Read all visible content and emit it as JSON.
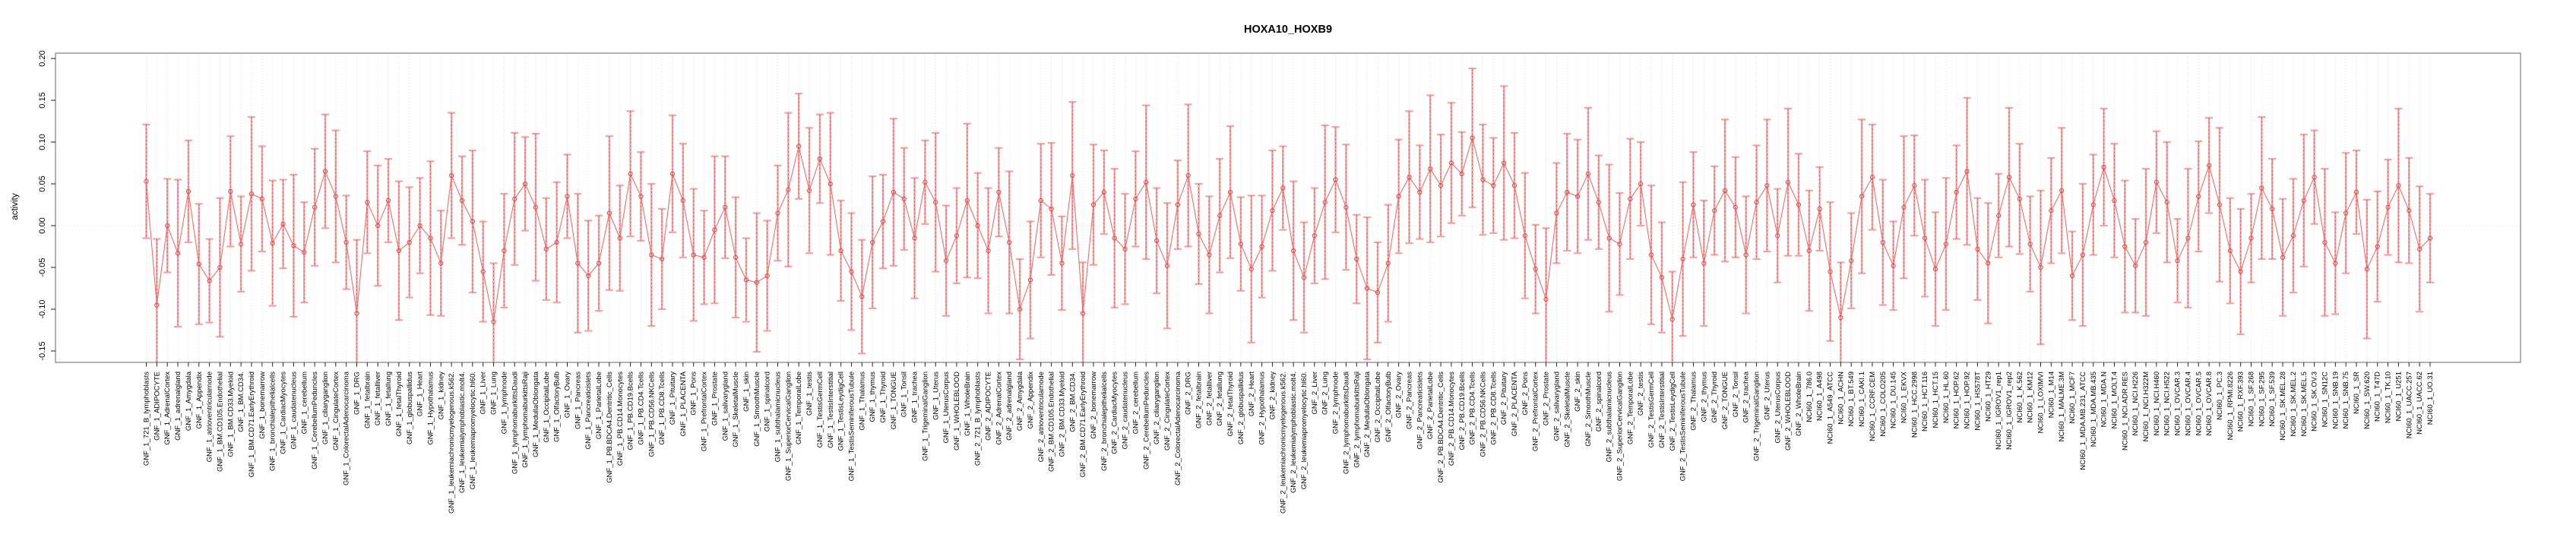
{
  "chart_data": {
    "type": "line",
    "title": "HOXA10_HOXB9",
    "xlabel": "",
    "ylabel": "activity",
    "ylim": [
      -0.164,
      0.206
    ],
    "yticks": [
      0.2,
      0.15,
      0.1,
      0.05,
      0.0,
      -0.05,
      -0.1,
      -0.15
    ],
    "ytick_labels": [
      "0.20",
      "0.15",
      "0.10",
      "0.05",
      "0.00",
      "-0.05",
      "-0.10",
      "-0.15"
    ],
    "grid": "dotted vertical line per category; dotted horizontal line at y=0",
    "legend_position": "none",
    "point_style": "open-circle with symmetric error bars",
    "colors": {
      "error_bar": "#f5a2a2",
      "error_bar_dash": "#e35f5f",
      "line": "#ef6d6d",
      "point_stroke": "#e04b4b",
      "gridline": "#dcdcdc",
      "axis_box": "#666666",
      "tick": "#222222",
      "text": "#000000",
      "background": "#ffffff"
    },
    "categories": [
      "GNF_1_721_B_lymphoblasts",
      "GNF_1_ADIPOCYTE",
      "GNF_1_AdrenalCortex",
      "GNF_1_adrenalgland",
      "GNF_1_Amygdala",
      "GNF_1_Appendix",
      "GNF_1_atrioventricularnode",
      "GNF_1_BM.CD105.Endothelial",
      "GNF_1_BM.CD33.Myeloid",
      "GNF_1_BM.CD34.",
      "GNF_1_BM.CD71.EarlyErythroid",
      "GNF_1_bonemarrow",
      "GNF_1_bronchialepithelialcells",
      "GNF_1_CardiacMyocytes",
      "GNF_1_caudatenucleus",
      "GNF_1_cerebellum",
      "GNF_1_CerebellumPeduncles",
      "GNF_1_ciliaryganglion",
      "GNF_1_CingulateCortex",
      "GNF_1_ColorectalAdenocarcinoma",
      "GNF_1_DRG",
      "GNF_1_fetalbrain",
      "GNF_1_fetalliver",
      "GNF_1_fetallung",
      "GNF_1_fetalThyroid",
      "GNF_1_globuspallidus",
      "GNF_1_Heart",
      "GNF_1_Hypothalamus",
      "GNF_1_kidney",
      "GNF_1_leukemiachronicmyelogenous.k562.",
      "GNF_1_leukemialymphoblastic.molt4.",
      "GNF_1_leukemiapromyelocytic.hl60.",
      "GNF_1_Liver",
      "GNF_1_Lung",
      "GNF_1_lymphnode",
      "GNF_1_lymphomaburkittsDaudi",
      "GNF_1_lymphomaburkittsRaji",
      "GNF_1_MedullaOblongata",
      "GNF_1_OccipitalLobe",
      "GNF_1_OlfactoryBulb",
      "GNF_1_Ovary",
      "GNF_1_Pancreas",
      "GNF_1_Pancreaticislets",
      "GNF_1_ParietalLobe",
      "GNF_1_PB.BDCA4.Dentritic_Cells",
      "GNF_1_PB.CD14.Monocytes",
      "GNF_1_PB.CD19.Bcells",
      "GNF_1_PB.CD4.Tcells",
      "GNF_1_PB.CD56.NKCells",
      "GNF_1_PB.CD8.Tcells",
      "GNF_1_Pituitary",
      "GNF_1_PLACENTA",
      "GNF_1_Pons",
      "GNF_1_PrefrontalCortex",
      "GNF_1_Prostate",
      "GNF_1_salivarygland",
      "GNF_1_SkeletalMuscle",
      "GNF_1_skin",
      "GNF_1_SmoothMuscle",
      "GNF_1_spinalcord",
      "GNF_1_subthalamicnucleus",
      "GNF_1_SuperiorCervicalGanglion",
      "GNF_1_TemporalLobe",
      "GNF_1_testis",
      "GNF_1_TestisGermCell",
      "GNF_1_TestisInterstitial",
      "GNF_1_TestisLeydigCell",
      "GNF_1_TestisSeminiferousTubule",
      "GNF_1_Thalamus",
      "GNF_1_thymus",
      "GNF_1_Thyroid",
      "GNF_1_TONGUE",
      "GNF_1_Tonsil",
      "GNF_1_trachea",
      "GNF_1_TrigeminalGanglion",
      "GNF_1_Uterus",
      "GNF_1_UterusCorpus",
      "GNF_1_WHOLEBLOOD",
      "GNF_1_WholeBrain",
      "GNF_2_721_B_lymphoblasts",
      "GNF_2_ADIPOCYTE",
      "GNF_2_AdrenalCortex",
      "GNF_2_adrenalgland",
      "GNF_2_Amygdala",
      "GNF_2_Appendix",
      "GNF_2_atrioventricularnode",
      "GNF_2_BM.CD105.Endothelial",
      "GNF_2_BM.CD33.Myeloid",
      "GNF_2_BM.CD34.",
      "GNF_2_BM.CD71.EarlyErythroid",
      "GNF_2_bonemarrow",
      "GNF_2_bronchialepithelialcells",
      "GNF_2_CardiacMyocytes",
      "GNF_2_caudatenucleus",
      "GNF_2_cerebellum",
      "GNF_2_CerebellumPeduncles",
      "GNF_2_ciliaryganglion",
      "GNF_2_CingulateCortex",
      "GNF_2_ColorectalAdenocarcinoma",
      "GNF_2_DRG",
      "GNF_2_fetalbrain",
      "GNF_2_fetalliver",
      "GNF_2_fetallung",
      "GNF_2_fetalThyroid",
      "GNF_2_globuspallidus",
      "GNF_2_Heart",
      "GNF_2_Hypothalamus",
      "GNF_2_kidney",
      "GNF_2_leukemiachronicmyelogenous.k562.",
      "GNF_2_leukemialymphoblastic.molt4.",
      "GNF_2_leukemiapromyelocytic.hl60.",
      "GNF_2_Liver",
      "GNF_2_Lung",
      "GNF_2_lymphnode",
      "GNF_2_lymphomaburkittsDaudi",
      "GNF_2_lymphomaburkittsRaji",
      "GNF_2_MedullaOblongata",
      "GNF_2_OccipitalLobe",
      "GNF_2_OlfactoryBulb",
      "GNF_2_Ovary",
      "GNF_2_Pancreas",
      "GNF_2_Pancreaticislets",
      "GNF_2_ParietalLobe",
      "GNF_2_PB.BDCA4.Dentritic_Cells",
      "GNF_2_PB.CD14.Monocytes",
      "GNF_2_PB.CD19.Bcells",
      "GNF_2_PB.CD4.Tcells",
      "GNF_2_PB.CD56.NKCells",
      "GNF_2_PB.CD8.Tcells",
      "GNF_2_Pituitary",
      "GNF_2_PLACENTA",
      "GNF_2_Pons",
      "GNF_2_PrefrontalCortex",
      "GNF_2_Prostate",
      "GNF_2_salivarygland",
      "GNF_2_SkeletalMuscle",
      "GNF_2_skin",
      "GNF_2_SmoothMuscle",
      "GNF_2_spinalcord",
      "GNF_2_subthalamicnucleus",
      "GNF_2_SuperiorCervicalGanglion",
      "GNF_2_TemporalLobe",
      "GNF_2_testis",
      "GNF_2_TestisGermCell",
      "GNF_2_TestisInterstitial",
      "GNF_2_TestisLeydigCell",
      "GNF_2_TestisSeminiferousTubule",
      "GNF_2_Thalamus",
      "GNF_2_thymus",
      "GNF_2_Thyroid",
      "GNF_2_TONGUE",
      "GNF_2_Tonsil",
      "GNF_2_trachea",
      "GNF_2_TrigeminalGanglion",
      "GNF_2_Uterus",
      "GNF_2_UterusCorpus",
      "GNF_2_WHOLEBLOOD",
      "GNF_2_WholeBrain",
      "NCI60_1_786.0",
      "NCI60_1_A498",
      "NCI60_1_A549_ATCC",
      "NCI60_1_ACHN",
      "NCI60_1_BT.549",
      "NCI60_1_CAKI.1",
      "NCI60_1_CCRF.CEM",
      "NCI60_1_COLO205",
      "NCI60_1_DU.145",
      "NCI60_1_EKVX",
      "NCI60_1_HCC.2998",
      "NCI60_1_HCT.116",
      "NCI60_1_HCT.15",
      "NCI60_1_HL.60",
      "NCI60_1_HOP.62",
      "NCI60_1_HOP.92",
      "NCI60_1_HS578T",
      "NCI60_1_HT29",
      "NCI60_1_IGROV1_rep1",
      "NCI60_1_IGROV1_rep2",
      "NCI60_1_K.562",
      "NCI60_1_KM12",
      "NCI60_1_LOXIMVI",
      "NCI60_1_M14",
      "NCI60_1_MALME.3M",
      "NCI60_1_MCF7",
      "NCI60_1_MDA.MB.231_ATCC",
      "NCI60_1_MDA.MB.435",
      "NCI60_1_MDA.N",
      "NCI60_1_MOLT.4",
      "NCI60_1_NCI.ADR.RES",
      "NCI60_1_NCI.H226",
      "NCI60_1_NCI.H322M",
      "NCI60_1_NCI.H460",
      "NCI60_1_NCI.H522",
      "NCI60_1_OVCAR.3",
      "NCI60_1_OVCAR.4",
      "NCI60_1_OVCAR.5",
      "NCI60_1_OVCAR.8",
      "NCI60_1_PC.3",
      "NCI60_1_RPMI.8226",
      "NCI60_1_RXF.393",
      "NCI60_1_SF.268",
      "NCI60_1_SF.295",
      "NCI60_1_SF.539",
      "NCI60_1_SK.MEL.28",
      "NCI60_1_SK.MEL.2",
      "NCI60_1_SK.MEL.5",
      "NCI60_1_SK.OV.3",
      "NCI60_1_SN12C",
      "NCI60_1_SNB.19",
      "NCI60_1_SNB.75",
      "NCI60_1_SR",
      "NCI60_1_SW.620",
      "NCI60_1_T47D",
      "NCI60_1_TK.10",
      "NCI60_1_U251",
      "NCI60_1_UACC.257",
      "NCI60_1_UACC.62",
      "NCI60_1_UO.31"
    ],
    "series": [
      {
        "name": "activity",
        "means": [
          0.053,
          -0.095,
          0.0,
          -0.033,
          0.041,
          -0.046,
          -0.066,
          -0.05,
          0.041,
          -0.022,
          0.038,
          0.032,
          -0.021,
          0.002,
          -0.024,
          -0.032,
          0.022,
          0.065,
          0.035,
          -0.02,
          -0.105,
          0.028,
          0.0,
          0.03,
          -0.03,
          -0.02,
          0.0,
          -0.015,
          -0.045,
          0.06,
          0.03,
          0.005,
          -0.055,
          -0.115,
          -0.03,
          0.032,
          0.05,
          0.022,
          -0.028,
          -0.02,
          0.035,
          -0.045,
          -0.06,
          -0.045,
          0.015,
          -0.015,
          0.062,
          0.035,
          -0.035,
          -0.04,
          0.062,
          0.03,
          -0.035,
          -0.038,
          -0.005,
          0.022,
          -0.038,
          -0.065,
          -0.068,
          -0.06,
          0.015,
          0.043,
          0.095,
          0.042,
          0.08,
          0.05,
          -0.03,
          -0.055,
          -0.085,
          -0.02,
          0.005,
          0.04,
          0.032,
          -0.015,
          0.052,
          0.028,
          -0.042,
          -0.012,
          0.03,
          0.0,
          -0.03,
          0.04,
          -0.02,
          -0.1,
          -0.065,
          0.03,
          0.02,
          -0.045,
          0.06,
          -0.105,
          0.025,
          0.04,
          -0.015,
          -0.028,
          0.032,
          0.052,
          -0.018,
          -0.048,
          0.025,
          0.06,
          -0.01,
          -0.035,
          0.012,
          0.04,
          -0.022,
          -0.052,
          -0.025,
          0.018,
          0.045,
          -0.03,
          -0.062,
          -0.012,
          0.028,
          0.055,
          0.022,
          -0.04,
          -0.075,
          -0.08,
          -0.045,
          0.035,
          0.058,
          0.04,
          0.068,
          0.048,
          0.075,
          0.062,
          0.105,
          0.055,
          0.048,
          0.075,
          0.048,
          -0.012,
          -0.052,
          -0.088,
          0.015,
          0.04,
          0.035,
          0.062,
          0.028,
          -0.015,
          -0.022,
          0.032,
          0.05,
          -0.035,
          -0.062,
          -0.112,
          -0.04,
          0.025,
          -0.045,
          0.018,
          0.042,
          0.022,
          -0.035,
          0.028,
          0.048,
          -0.012,
          0.052,
          0.025,
          -0.03,
          0.02,
          -0.055,
          -0.11,
          -0.042,
          0.035,
          0.058,
          -0.02,
          -0.048,
          0.022,
          0.048,
          -0.015,
          -0.052,
          -0.022,
          0.04,
          0.065,
          -0.028,
          -0.045,
          0.012,
          0.058,
          0.032,
          -0.022,
          -0.05,
          0.018,
          0.042,
          -0.06,
          -0.035,
          0.025,
          0.07,
          0.03,
          -0.025,
          -0.048,
          -0.02,
          0.052,
          0.028,
          -0.042,
          -0.015,
          0.035,
          0.072,
          0.025,
          -0.03,
          -0.055,
          -0.015,
          0.045,
          0.02,
          -0.038,
          -0.012,
          0.03,
          0.058,
          -0.02,
          -0.045,
          0.015,
          0.04,
          -0.052,
          -0.025,
          0.022,
          0.048,
          0.018,
          -0.028,
          -0.015
        ],
        "ci_halfwidth": [
          0.068,
          0.079,
          0.056,
          0.088,
          0.061,
          0.072,
          0.05,
          0.083,
          0.066,
          0.057,
          0.092,
          0.063,
          0.075,
          0.053,
          0.085,
          0.06,
          0.07,
          0.068,
          0.079,
          0.056,
          0.088,
          0.061,
          0.072,
          0.05,
          0.083,
          0.066,
          0.057,
          0.092,
          0.063,
          0.075,
          0.053,
          0.085,
          0.06,
          0.07,
          0.068,
          0.079,
          0.056,
          0.088,
          0.061,
          0.072,
          0.05,
          0.083,
          0.066,
          0.057,
          0.092,
          0.063,
          0.075,
          0.053,
          0.085,
          0.06,
          0.07,
          0.068,
          0.079,
          0.056,
          0.088,
          0.061,
          0.072,
          0.05,
          0.083,
          0.066,
          0.057,
          0.092,
          0.063,
          0.075,
          0.053,
          0.085,
          0.06,
          0.07,
          0.068,
          0.079,
          0.056,
          0.088,
          0.061,
          0.072,
          0.05,
          0.083,
          0.066,
          0.057,
          0.092,
          0.063,
          0.075,
          0.053,
          0.085,
          0.06,
          0.07,
          0.068,
          0.079,
          0.056,
          0.088,
          0.061,
          0.072,
          0.05,
          0.083,
          0.066,
          0.057,
          0.092,
          0.063,
          0.075,
          0.053,
          0.085,
          0.06,
          0.07,
          0.068,
          0.079,
          0.056,
          0.088,
          0.061,
          0.072,
          0.05,
          0.083,
          0.066,
          0.057,
          0.092,
          0.063,
          0.075,
          0.053,
          0.085,
          0.06,
          0.07,
          0.068,
          0.079,
          0.056,
          0.088,
          0.061,
          0.072,
          0.05,
          0.083,
          0.066,
          0.057,
          0.092,
          0.063,
          0.075,
          0.053,
          0.085,
          0.06,
          0.07,
          0.068,
          0.079,
          0.056,
          0.088,
          0.061,
          0.072,
          0.05,
          0.083,
          0.066,
          0.057,
          0.092,
          0.063,
          0.075,
          0.053,
          0.085,
          0.06,
          0.07,
          0.068,
          0.079,
          0.056,
          0.088,
          0.061,
          0.072,
          0.05,
          0.083,
          0.066,
          0.057,
          0.092,
          0.063,
          0.075,
          0.053,
          0.085,
          0.06,
          0.07,
          0.068,
          0.079,
          0.056,
          0.088,
          0.061,
          0.072,
          0.05,
          0.083,
          0.066,
          0.057,
          0.092,
          0.063,
          0.075,
          0.053,
          0.085,
          0.06,
          0.07,
          0.068,
          0.079,
          0.056,
          0.088,
          0.061,
          0.072,
          0.05,
          0.083,
          0.066,
          0.057,
          0.092,
          0.063,
          0.075,
          0.053,
          0.085,
          0.06,
          0.07,
          0.068,
          0.079,
          0.056,
          0.088,
          0.061,
          0.072,
          0.05,
          0.083,
          0.066,
          0.057,
          0.092,
          0.063,
          0.075,
          0.053
        ]
      }
    ]
  }
}
